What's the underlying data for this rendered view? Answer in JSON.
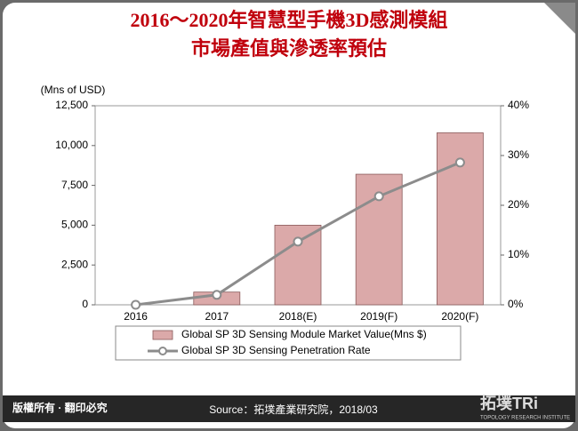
{
  "chart_data": {
    "type": "bar-line",
    "title": [
      "2016～2020年智慧型手機3D感測模組",
      "市場產值與滲透率預估"
    ],
    "y_label": "(Mns of USD)",
    "categories": [
      "2016",
      "2017",
      "2018(E)",
      "2019(F)",
      "2020(F)"
    ],
    "series": [
      {
        "name": "Global SP 3D Sensing Module Market Value(Mns $)",
        "type": "bar",
        "color": "#dba9a9",
        "values": [
          0,
          800,
          5000,
          8200,
          10800
        ]
      },
      {
        "name": "Global SP 3D Sensing Penetration Rate",
        "type": "line",
        "axis": "y2",
        "color": "#8c8c8c",
        "values": [
          0,
          2,
          12.7,
          21.8,
          28.6
        ]
      }
    ],
    "ylim": [
      0,
      12500
    ],
    "yticks": [
      0,
      {
        "value": 2500,
        "label": "2,500"
      },
      {
        "value": 5000,
        "label": "5,000"
      },
      {
        "value": 7500,
        "label": "7,500"
      },
      {
        "value": 10000,
        "label": "10,000"
      },
      {
        "value": 12500,
        "label": "12,500"
      }
    ],
    "y2lim": [
      0,
      40
    ],
    "y2ticks": [
      {
        "value": 0,
        "label": "0%"
      },
      {
        "value": 10,
        "label": "10%"
      },
      {
        "value": 20,
        "label": "20%"
      },
      {
        "value": 30,
        "label": "30%"
      },
      {
        "value": 40,
        "label": "40%"
      }
    ],
    "legend": "bottom"
  },
  "footer": {
    "copyright": "版權所有 · 翻印必究",
    "source": "Source：拓墣產業研究院，2018/03",
    "logo": "拓墣TRi",
    "logo_sub": "TOPOLOGY RESEARCH INSTITUTE"
  }
}
